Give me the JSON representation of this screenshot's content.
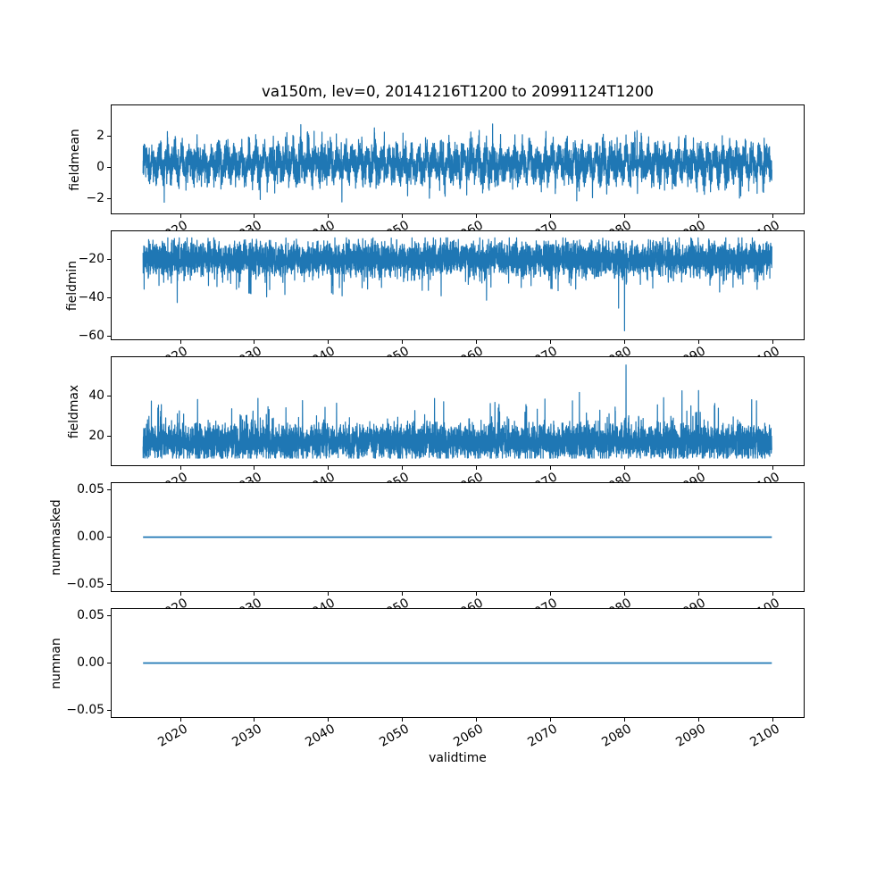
{
  "figure": {
    "title": "va150m, lev=0, 20141216T1200 to 20991124T1200",
    "xlabel": "validtime",
    "background": "#ffffff",
    "line_color": "#1f77b4",
    "frame_color": "#000000"
  },
  "chart_data": {
    "type": "line",
    "title": "va150m, lev=0, 20141216T1200 to 20991124T1200",
    "xlabel": "validtime",
    "x_range": [
      2014.96,
      2099.9
    ],
    "xticks": [
      2020,
      2030,
      2040,
      2050,
      2060,
      2070,
      2080,
      2090,
      2100
    ],
    "xtick_labels": [
      "2020",
      "2030",
      "2040",
      "2050",
      "2060",
      "2070",
      "2080",
      "2090",
      "2100"
    ],
    "legend": "none",
    "grid": false,
    "line_color": "#1f77b4",
    "subplots": [
      {
        "name": "fieldmean",
        "ylabel": "fieldmean",
        "yticks": [
          2,
          0,
          -2
        ],
        "ytick_labels": [
          "2",
          "0",
          "−2"
        ],
        "ylim": [
          -2.95,
          3.95
        ],
        "series": {
          "kind": "noise",
          "seed": 1,
          "mean": 0.25,
          "sd": 0.55,
          "season_amp": 0.5,
          "spike_chance": 0.025,
          "spike_min": 0.4,
          "spike_max": 1.4,
          "spike_sign": "both",
          "clip": [
            -2.65,
            3.4
          ],
          "summary": "noisy series centered near 0.3, typical band -1.5..2, extremes -2.6 and 3.4"
        }
      },
      {
        "name": "fieldmin",
        "ylabel": "fieldmin",
        "yticks": [
          -20,
          -40,
          -60
        ],
        "ytick_labels": [
          "−20",
          "−40",
          "−60"
        ],
        "ylim": [
          -61.5,
          -5.1
        ],
        "series": {
          "kind": "noise",
          "seed": 2,
          "mean": -19.5,
          "sd": 4.2,
          "season_amp": 0,
          "spike_chance": 0.015,
          "spike_min": 4,
          "spike_max": 18,
          "spike_sign": "down",
          "clip": [
            -46,
            -8.5
          ],
          "events": [
            {
              "x": 2080.0,
              "value": -57
            }
          ],
          "summary": "noisy band about -10..-30 with downward spikes to -45 and one extreme dip to -57 near 2080"
        }
      },
      {
        "name": "fieldmax",
        "ylabel": "fieldmax",
        "yticks": [
          40,
          20
        ],
        "ytick_labels": [
          "40",
          "20"
        ],
        "ylim": [
          6.0,
          58.8
        ],
        "series": {
          "kind": "noise",
          "seed": 3,
          "mean": 17.5,
          "sd": 4.2,
          "season_amp": 0,
          "spike_chance": 0.015,
          "spike_min": 4,
          "spike_max": 22,
          "spike_sign": "up",
          "clip": [
            9.5,
            47
          ],
          "events": [
            {
              "x": 2080.2,
              "value": 55
            }
          ],
          "summary": "noisy band about 10..28 with upward spikes to 45 and one extreme peak to 55 near 2080"
        }
      },
      {
        "name": "nummasked",
        "ylabel": "nummasked",
        "yticks": [
          0.05,
          0.0,
          -0.05
        ],
        "ytick_labels": [
          "0.05",
          "0.00",
          "−0.05"
        ],
        "ylim": [
          -0.0575,
          0.0575
        ],
        "series": {
          "kind": "constant",
          "value": 0.0,
          "summary": "flat line at 0"
        }
      },
      {
        "name": "numnan",
        "ylabel": "numnan",
        "yticks": [
          0.05,
          0.0,
          -0.05
        ],
        "ytick_labels": [
          "0.05",
          "0.00",
          "−0.05"
        ],
        "ylim": [
          -0.0575,
          0.0575
        ],
        "series": {
          "kind": "constant",
          "value": 0.0,
          "summary": "flat line at 0"
        }
      }
    ]
  }
}
